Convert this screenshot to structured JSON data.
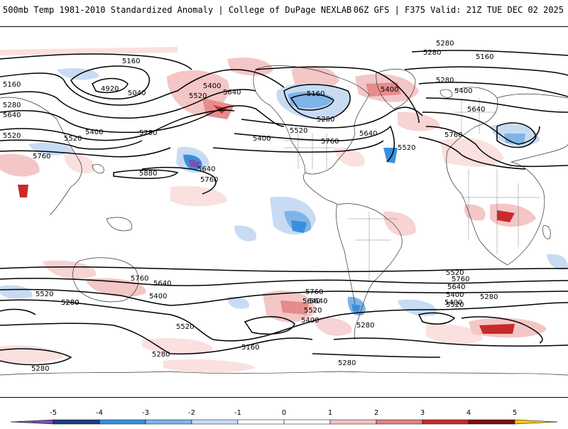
{
  "header": {
    "title": "500mb Temp 1981-2010 Standardized Anomaly | College of DuPage NEXLAB",
    "run_info": "06Z GFS | F375 Valid: 21Z TUE DEC 02 2025"
  },
  "colorbar": {
    "ticks": [
      "-5",
      "-4",
      "-3",
      "-2",
      "-1",
      "0",
      "1",
      "2",
      "3",
      "4",
      "5"
    ],
    "colors": [
      "#7a4fb0",
      "#1f3f7a",
      "#3a8fdc",
      "#7fb4e8",
      "#c7dcf3",
      "#ffffff",
      "#ffffff",
      "#f3c3c3",
      "#e08585",
      "#c92a2a",
      "#7d0f0f",
      "#f5c518"
    ]
  },
  "contour_labels": [
    {
      "id": "l1",
      "text": "5160"
    },
    {
      "id": "l2",
      "text": "4920"
    },
    {
      "id": "l3",
      "text": "5040"
    },
    {
      "id": "l4",
      "text": "5400"
    },
    {
      "id": "l5",
      "text": "5520"
    },
    {
      "id": "l6",
      "text": "5640"
    },
    {
      "id": "l7",
      "text": "5640"
    },
    {
      "id": "l8",
      "text": "5520"
    },
    {
      "id": "l9",
      "text": "5400"
    },
    {
      "id": "l10",
      "text": "5280"
    },
    {
      "id": "l11",
      "text": "5760"
    },
    {
      "id": "l12",
      "text": "5880"
    },
    {
      "id": "l13",
      "text": "5640"
    },
    {
      "id": "l14",
      "text": "5760"
    },
    {
      "id": "l15",
      "text": "5160"
    },
    {
      "id": "l16",
      "text": "5280"
    },
    {
      "id": "l17",
      "text": "5400"
    },
    {
      "id": "l18",
      "text": "5520"
    },
    {
      "id": "l19",
      "text": "5760"
    },
    {
      "id": "l20",
      "text": "5640"
    },
    {
      "id": "l21",
      "text": "5400"
    },
    {
      "id": "l22",
      "text": "5520"
    },
    {
      "id": "l23",
      "text": "5280"
    },
    {
      "id": "l24",
      "text": "5160"
    },
    {
      "id": "l25",
      "text": "5280"
    },
    {
      "id": "l26",
      "text": "5400"
    },
    {
      "id": "l27",
      "text": "5640"
    },
    {
      "id": "l28",
      "text": "5760"
    },
    {
      "id": "l29",
      "text": "5520"
    },
    {
      "id": "l30",
      "text": "5280"
    },
    {
      "id": "l31",
      "text": "5160"
    },
    {
      "id": "l32",
      "text": "5760"
    },
    {
      "id": "l33",
      "text": "5640"
    },
    {
      "id": "l34",
      "text": "5520"
    },
    {
      "id": "l35",
      "text": "5400"
    },
    {
      "id": "l36",
      "text": "5520"
    },
    {
      "id": "l37",
      "text": "5280"
    },
    {
      "id": "l38",
      "text": "5760"
    },
    {
      "id": "l39",
      "text": "5640"
    },
    {
      "id": "l40",
      "text": "5520"
    },
    {
      "id": "l41",
      "text": "5400"
    },
    {
      "id": "l42",
      "text": "5280"
    },
    {
      "id": "l43",
      "text": "5280"
    },
    {
      "id": "l44",
      "text": "5280"
    },
    {
      "id": "l45",
      "text": "5160"
    },
    {
      "id": "l46",
      "text": "5520"
    },
    {
      "id": "l47",
      "text": "5400"
    },
    {
      "id": "l48",
      "text": "5280"
    },
    {
      "id": "l49",
      "text": "5640"
    },
    {
      "id": "l50",
      "text": "5760"
    },
    {
      "id": "l51",
      "text": "5520"
    },
    {
      "id": "l52",
      "text": "5400"
    },
    {
      "id": "l53",
      "text": "5280"
    },
    {
      "id": "l54",
      "text": "5280"
    },
    {
      "id": "l55",
      "text": "5280"
    },
    {
      "id": "l56",
      "text": "5640"
    }
  ]
}
